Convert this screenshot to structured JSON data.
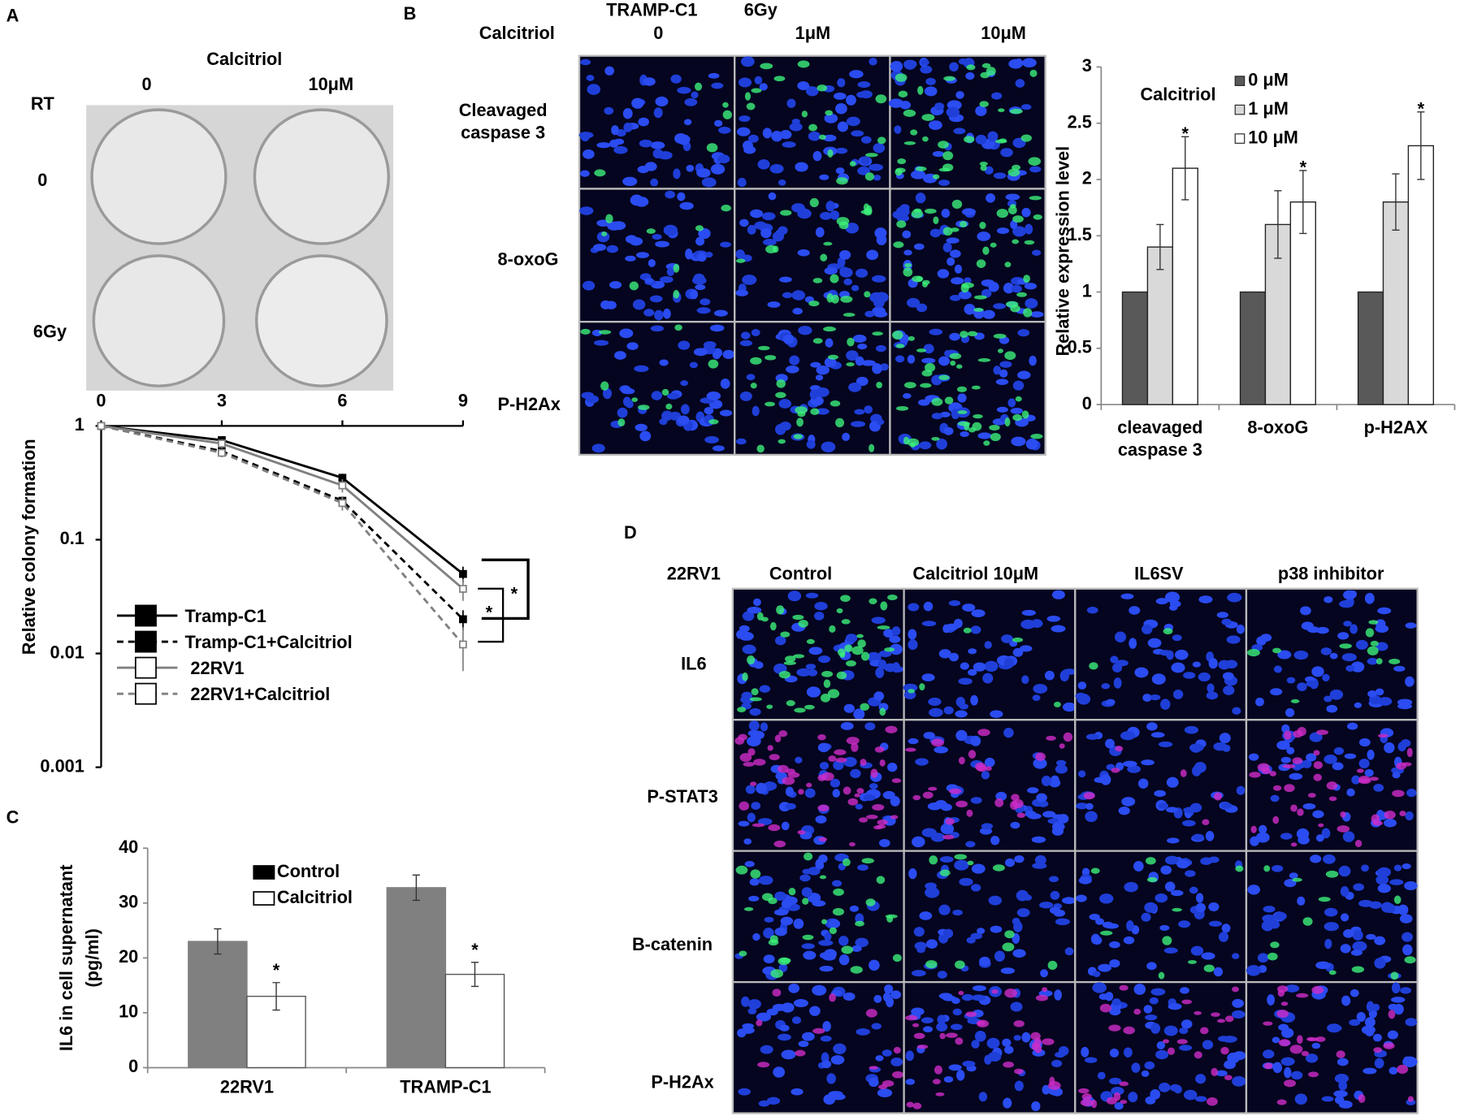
{
  "panels": [
    "A",
    "B",
    "C",
    "D"
  ],
  "figure_a": {
    "header": "Calcitriol",
    "columns": [
      "0",
      "10μM"
    ],
    "corner": "RT",
    "rows": [
      "0",
      "6Gy"
    ]
  },
  "figure_b": {
    "cell_line": "TRAMP-C1",
    "dose": "6Gy",
    "header": "Calcitriol",
    "columns": [
      "0",
      "1μM",
      "10μM"
    ],
    "rows": [
      "Cleavaged caspase 3",
      "8-oxoG",
      "P-H2Ax"
    ]
  },
  "figure_d": {
    "cell_line": "22RV1",
    "columns": [
      "Control",
      "Calcitriol 10μM",
      "IL6SV",
      "p38 inhibitor"
    ],
    "rows": [
      "IL6",
      "P-STAT3",
      "B-catenin",
      "P-H2Ax"
    ]
  },
  "chart_data": [
    {
      "type": "line",
      "ylabel": "Relative colony formation",
      "x": [
        0,
        3,
        6,
        9
      ],
      "xlim": [
        0,
        9
      ],
      "xticks": [
        0,
        3,
        6,
        9
      ],
      "x_axis": "top",
      "ylim": [
        0.001,
        1
      ],
      "yticks": [
        0.001,
        0.01,
        0.1,
        1
      ],
      "log_y": true,
      "legend": "lower left",
      "series": [
        {
          "name": "Tramp-C1",
          "color": "#000000",
          "dashed": false,
          "marker": "filled",
          "values": [
            1,
            0.75,
            0.35,
            0.05
          ],
          "errors": [
            0,
            0.06,
            0.03,
            0.008
          ]
        },
        {
          "name": "Tramp-C1+Calcitriol",
          "color": "#000000",
          "dashed": true,
          "marker": "filled",
          "values": [
            1,
            0.6,
            0.22,
            0.02
          ],
          "errors": [
            0,
            0.05,
            0.02,
            0.004
          ]
        },
        {
          "name": "22RV1",
          "color": "#808080",
          "dashed": false,
          "marker": "open",
          "values": [
            1,
            0.7,
            0.3,
            0.037
          ],
          "errors": [
            0,
            0.06,
            0.04,
            0.008
          ]
        },
        {
          "name": "22RV1+Calcitriol",
          "color": "#808080",
          "dashed": true,
          "marker": "open",
          "values": [
            1,
            0.58,
            0.21,
            0.012
          ],
          "errors": [
            0,
            0.05,
            0.03,
            0.005
          ]
        }
      ],
      "annotations": [
        "*",
        "*"
      ]
    },
    {
      "type": "bar",
      "ylabel": "Relative expression level",
      "categories": [
        "cleavaged caspase 3",
        "8-oxoG",
        "p-H2AX"
      ],
      "ylim": [
        0,
        3
      ],
      "yticks": [
        0,
        0.5,
        1,
        1.5,
        2,
        2.5,
        3
      ],
      "legend_title": "Calcitriol",
      "legend": "upper left",
      "series": [
        {
          "name": "0 μM",
          "color": "#595959",
          "values": [
            1,
            1,
            1
          ],
          "errors": [
            0,
            0,
            0
          ]
        },
        {
          "name": "1 μM",
          "color": "#d9d9d9",
          "values": [
            1.4,
            1.6,
            1.8
          ],
          "errors": [
            0.2,
            0.3,
            0.25
          ]
        },
        {
          "name": "10 μM",
          "color": "#ffffff",
          "values": [
            2.1,
            1.8,
            2.3
          ],
          "errors": [
            0.28,
            0.28,
            0.3
          ]
        }
      ],
      "annotations": [
        "*",
        "*",
        "*"
      ]
    },
    {
      "type": "bar",
      "ylabel": [
        "IL6 in cell supernatant",
        "(pg/ml)"
      ],
      "categories": [
        "22RV1",
        "TRAMP-C1"
      ],
      "ylim": [
        0,
        40
      ],
      "yticks": [
        0,
        10,
        20,
        30,
        40
      ],
      "legend": "upper center",
      "series": [
        {
          "name": "Control",
          "color": "#808080",
          "values": [
            23,
            32.8
          ],
          "errors": [
            2.3,
            2.3
          ]
        },
        {
          "name": "Calcitriol",
          "color": "#ffffff",
          "values": [
            13,
            17
          ],
          "errors": [
            2.5,
            2.2
          ]
        }
      ],
      "annotations": [
        "*",
        "*"
      ]
    }
  ]
}
